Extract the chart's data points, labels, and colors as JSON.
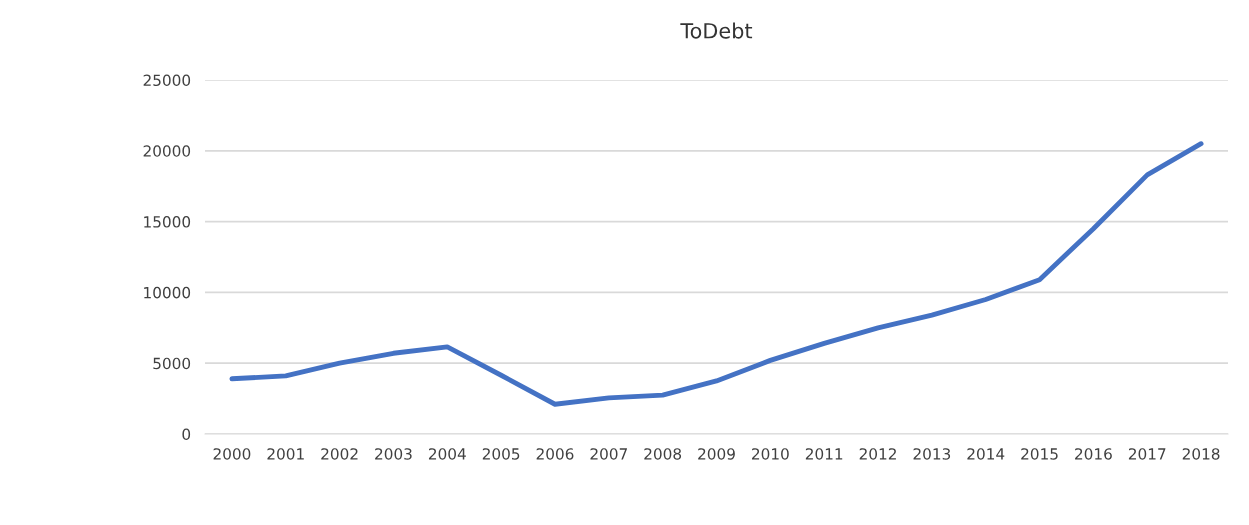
{
  "chart_data": {
    "type": "line",
    "title": "ToDebt",
    "categories": [
      "2000",
      "2001",
      "2002",
      "2003",
      "2004",
      "2005",
      "2006",
      "2007",
      "2008",
      "2009",
      "2010",
      "2011",
      "2012",
      "2013",
      "2014",
      "2015",
      "2016",
      "2017",
      "2018"
    ],
    "series": [
      {
        "color": "#4472c4",
        "values": [
          3900,
          4100,
          5000,
          5700,
          6150,
          4150,
          2100,
          2550,
          2750,
          3750,
          5200,
          6400,
          7500,
          8400,
          9500,
          10900,
          14500,
          18300,
          20500
        ]
      }
    ],
    "ylim": [
      0,
      25000
    ],
    "yticks": [
      0,
      5000,
      10000,
      15000,
      20000,
      25000
    ],
    "grid": "y",
    "marker": "none",
    "line_style": "solid"
  }
}
